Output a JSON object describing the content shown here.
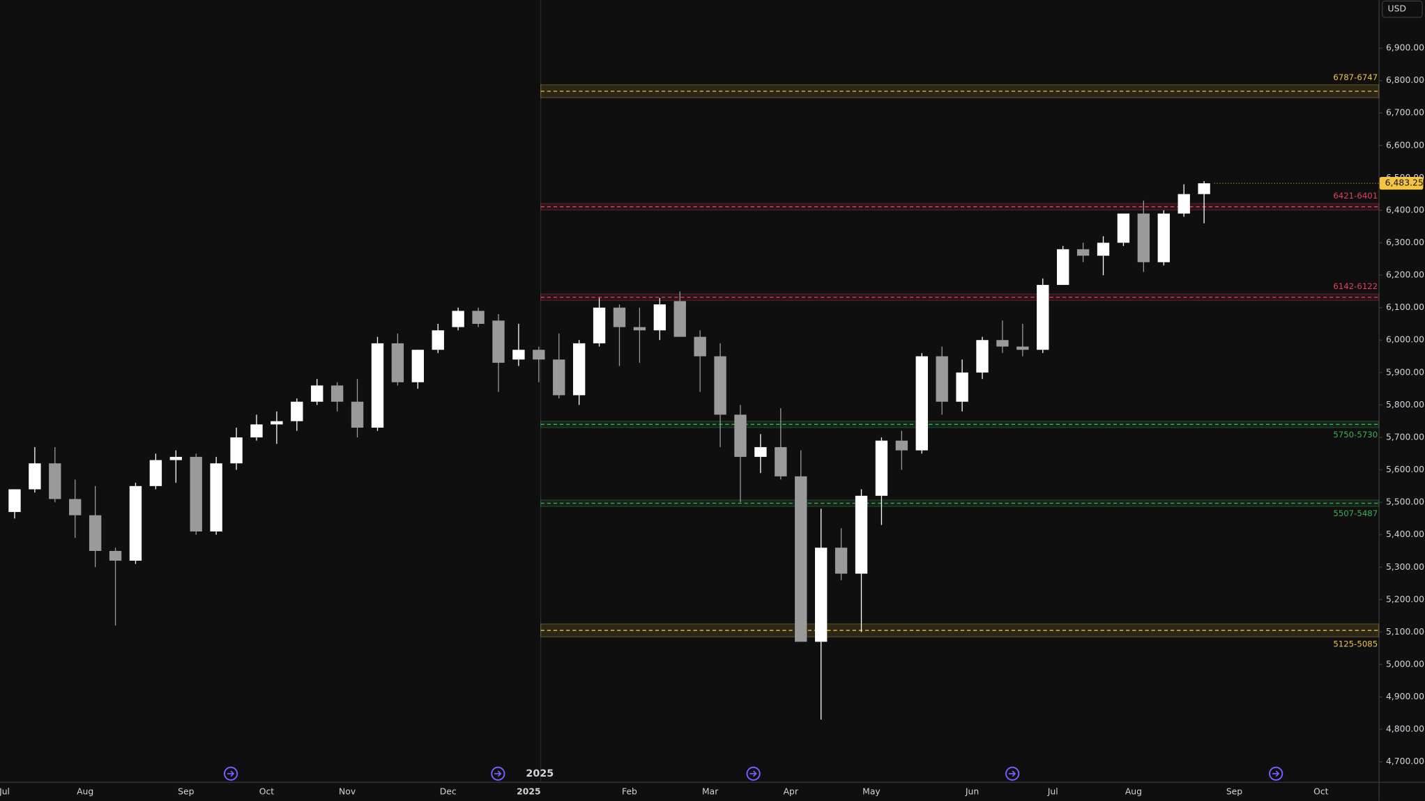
{
  "chart_data": {
    "type": "candlestick",
    "currency": "USD",
    "categories": [
      "Jul",
      null,
      null,
      null,
      "Aug",
      null,
      null,
      null,
      null,
      "Sep",
      null,
      null,
      null,
      "Oct",
      null,
      null,
      null,
      "Nov",
      null,
      null,
      null,
      null,
      "Dec",
      null,
      null,
      null,
      "2025",
      null,
      null,
      null,
      null,
      "Feb",
      null,
      null,
      null,
      "Mar",
      null,
      null,
      null,
      "Apr",
      null,
      null,
      null,
      "May",
      null,
      null,
      null,
      null,
      "Jun",
      null,
      null,
      null,
      "Jul",
      null,
      null,
      null,
      "Aug",
      null,
      null,
      null
    ],
    "future_categories": [
      "Sep",
      "Oct"
    ],
    "open": [
      5470,
      5540,
      5620,
      5510,
      5460,
      5350,
      5320,
      5550,
      5630,
      5640,
      5410,
      5620,
      5700,
      5740,
      5750,
      5810,
      5860,
      5810,
      5730,
      5990,
      5870,
      5970,
      6040,
      6090,
      6060,
      5940,
      5970,
      5940,
      5830,
      5990,
      6100,
      6040,
      6030,
      6120,
      6010,
      5950,
      5770,
      5640,
      5670,
      5580,
      5070,
      5360,
      5280,
      5520,
      5690,
      5660,
      5950,
      5810,
      5900,
      6000,
      5980,
      5970,
      6170,
      6280,
      6260,
      6300,
      6390,
      6240,
      6390,
      6450
    ],
    "high": [
      5540,
      5670,
      5670,
      5570,
      5550,
      5360,
      5560,
      5650,
      5660,
      5650,
      5640,
      5730,
      5770,
      5780,
      5820,
      5880,
      5870,
      5880,
      6010,
      6020,
      5970,
      6050,
      6100,
      6100,
      6080,
      6050,
      5980,
      6020,
      6000,
      6130,
      6110,
      6100,
      6130,
      6150,
      6030,
      5990,
      5800,
      5710,
      5790,
      5660,
      5480,
      5420,
      5540,
      5700,
      5720,
      5960,
      5980,
      5940,
      6010,
      6060,
      6050,
      6190,
      6290,
      6300,
      6320,
      6390,
      6430,
      6400,
      6480,
      6490
    ],
    "low": [
      5450,
      5530,
      5500,
      5390,
      5300,
      5120,
      5310,
      5540,
      5560,
      5400,
      5400,
      5600,
      5690,
      5680,
      5720,
      5800,
      5780,
      5700,
      5720,
      5860,
      5850,
      5960,
      6030,
      6040,
      5840,
      5920,
      5870,
      5820,
      5800,
      5980,
      5920,
      5930,
      6000,
      6010,
      5840,
      5670,
      5500,
      5590,
      5570,
      5070,
      4830,
      5260,
      5100,
      5430,
      5600,
      5650,
      5770,
      5780,
      5880,
      5960,
      5950,
      5960,
      6170,
      6240,
      6200,
      6290,
      6210,
      6230,
      6380,
      6360
    ],
    "close": [
      5540,
      5620,
      5510,
      5460,
      5350,
      5320,
      5550,
      5630,
      5640,
      5410,
      5620,
      5700,
      5740,
      5750,
      5810,
      5860,
      5810,
      5730,
      5990,
      5870,
      5970,
      6030,
      6090,
      6050,
      5930,
      5970,
      5940,
      5830,
      5990,
      6100,
      6040,
      6030,
      6110,
      6010,
      5950,
      5770,
      5640,
      5670,
      5580,
      5070,
      5360,
      5280,
      5520,
      5690,
      5660,
      5950,
      5810,
      5900,
      6000,
      5980,
      5970,
      6170,
      6280,
      6260,
      6300,
      6390,
      6240,
      6390,
      6450,
      6483.25
    ],
    "up_color": "#ffffff",
    "down_color": "#9a9a9a",
    "last_price": {
      "value": 6483.25,
      "label": "6,483.25"
    },
    "ylim": [
      4641,
      7048
    ],
    "yticks": [
      {
        "value": 4700,
        "label": "4,700.00"
      },
      {
        "value": 4800,
        "label": "4,800.00"
      },
      {
        "value": 4900,
        "label": "4,900.00"
      },
      {
        "value": 5000,
        "label": "5,000.00"
      },
      {
        "value": 5100,
        "label": "5,100.00"
      },
      {
        "value": 5200,
        "label": "5,200.00"
      },
      {
        "value": 5300,
        "label": "5,300.00"
      },
      {
        "value": 5400,
        "label": "5,400.00"
      },
      {
        "value": 5500,
        "label": "5,500.00"
      },
      {
        "value": 5600,
        "label": "5,600.00"
      },
      {
        "value": 5700,
        "label": "5,700.00"
      },
      {
        "value": 5800,
        "label": "5,800.00"
      },
      {
        "value": 5900,
        "label": "5,900.00"
      },
      {
        "value": 6000,
        "label": "6,000.00"
      },
      {
        "value": 6100,
        "label": "6,100.00"
      },
      {
        "value": 6200,
        "label": "6,200.00"
      },
      {
        "value": 6300,
        "label": "6,300.00"
      },
      {
        "value": 6400,
        "label": "6,400.00"
      },
      {
        "value": 6500,
        "label": "6,500.00"
      },
      {
        "value": 6600,
        "label": "6,600.00"
      },
      {
        "value": 6700,
        "label": "6,700.00"
      },
      {
        "value": 6800,
        "label": "6,800.00"
      },
      {
        "value": 6900,
        "label": "6,900.00"
      }
    ],
    "zones": [
      {
        "label": "6787-6747",
        "top": 6787,
        "bottom": 6747,
        "color": "#e8c547"
      },
      {
        "label": "6421-6401",
        "top": 6421,
        "bottom": 6401,
        "color": "#e0415b"
      },
      {
        "label": "6142-6122",
        "top": 6142,
        "bottom": 6122,
        "color": "#e0415b"
      },
      {
        "label": "5750-5730",
        "top": 5750,
        "bottom": 5730,
        "color": "#3fae55"
      },
      {
        "label": "5507-5487",
        "top": 5507,
        "bottom": 5487,
        "color": "#3fae55"
      },
      {
        "label": "5125-5085",
        "top": 5125,
        "bottom": 5085,
        "color": "#e8c547"
      }
    ]
  }
}
